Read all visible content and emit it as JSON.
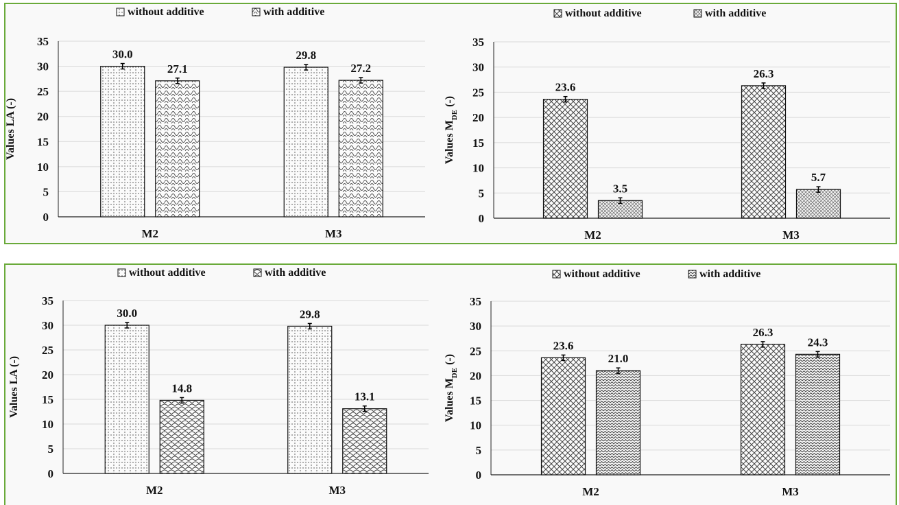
{
  "colors": {
    "frame": "#6aaa3a",
    "grid": "#d9d9d9",
    "axis": "#222222",
    "bar_stroke": "#111111"
  },
  "chart_data": [
    {
      "type": "bar",
      "ylabel": "Values  LA (-)",
      "ylabel_sub": "",
      "categories": [
        "M2",
        "M3"
      ],
      "ylim": [
        0,
        35
      ],
      "yticks": [
        0,
        5,
        10,
        15,
        20,
        25,
        30,
        35
      ],
      "grid": true,
      "legend": "top",
      "series": [
        {
          "name": "without additive",
          "values": [
            30.0,
            29.8
          ],
          "labels": [
            "30.0",
            "29.8"
          ],
          "pattern": "dots"
        },
        {
          "name": "with additive",
          "values": [
            27.1,
            27.2
          ],
          "labels": [
            "27.1",
            "27.2"
          ],
          "pattern": "waves"
        }
      ]
    },
    {
      "type": "bar",
      "ylabel": "Values M",
      "ylabel_sub": "DE",
      "ylabel_tail": " (-)",
      "categories": [
        "M2",
        "M3"
      ],
      "ylim": [
        0,
        35
      ],
      "yticks": [
        0,
        5,
        10,
        15,
        20,
        25,
        30,
        35
      ],
      "grid": true,
      "legend": "top",
      "series": [
        {
          "name": "without additive",
          "values": [
            23.6,
            26.3
          ],
          "labels": [
            "23.6",
            "26.3"
          ],
          "pattern": "cross"
        },
        {
          "name": "with additive",
          "values": [
            3.5,
            5.7
          ],
          "labels": [
            "3.5",
            "5.7"
          ],
          "pattern": "fine"
        }
      ]
    },
    {
      "type": "bar",
      "ylabel": "Values  LA (-)",
      "ylabel_sub": "",
      "categories": [
        "M2",
        "M3"
      ],
      "ylim": [
        0,
        35
      ],
      "yticks": [
        0,
        5,
        10,
        15,
        20,
        25,
        30,
        35
      ],
      "grid": true,
      "legend": "top",
      "series": [
        {
          "name": "without additive",
          "values": [
            30.0,
            29.8
          ],
          "labels": [
            "30.0",
            "29.8"
          ],
          "pattern": "dots"
        },
        {
          "name": "with additive",
          "values": [
            14.8,
            13.1
          ],
          "labels": [
            "14.8",
            "13.1"
          ],
          "pattern": "scales"
        }
      ]
    },
    {
      "type": "bar",
      "ylabel": "Values M",
      "ylabel_sub": "DE",
      "ylabel_tail": " (-)",
      "categories": [
        "M2",
        "M3"
      ],
      "ylim": [
        0,
        35
      ],
      "yticks": [
        0,
        5,
        10,
        15,
        20,
        25,
        30,
        35
      ],
      "grid": true,
      "legend": "top",
      "series": [
        {
          "name": "without additive",
          "values": [
            23.6,
            26.3
          ],
          "labels": [
            "23.6",
            "26.3"
          ],
          "pattern": "cross"
        },
        {
          "name": "with additive",
          "values": [
            21.0,
            24.3
          ],
          "labels": [
            "21.0",
            "24.3"
          ],
          "pattern": "zigzag"
        }
      ]
    }
  ]
}
